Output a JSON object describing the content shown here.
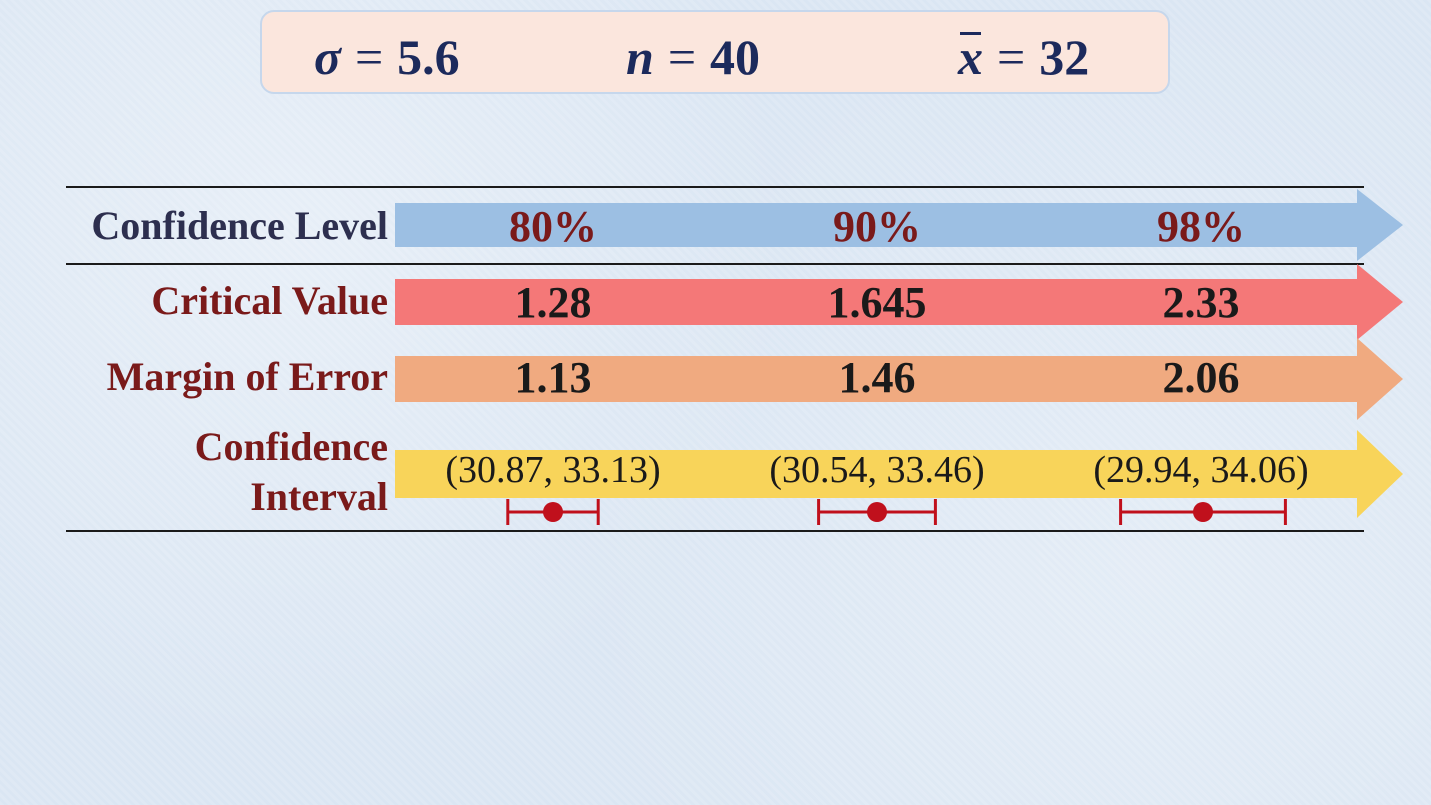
{
  "params": {
    "sigma": {
      "symbol": "σ",
      "eq": "=",
      "value": "5.6"
    },
    "n": {
      "symbol": "n",
      "eq": "=",
      "value": "40"
    },
    "xbar": {
      "symbol": "x",
      "eq": "=",
      "value": "32"
    }
  },
  "rows": {
    "confidence_level": "Confidence Level",
    "critical_value": "Critical Value",
    "margin_of_error": "Margin of Error",
    "confidence_interval_line1": "Confidence",
    "confidence_interval_line2": "Interval"
  },
  "columns": [
    {
      "level": "80%",
      "critical": "1.28",
      "moe": "1.13",
      "ci": "(30.87, 33.13)"
    },
    {
      "level": "90%",
      "critical": "1.645",
      "moe": "1.46",
      "ci": "(30.54, 33.46)"
    },
    {
      "level": "98%",
      "critical": "2.33",
      "moe": "2.06",
      "ci": "(29.94, 34.06)"
    }
  ],
  "colors": {
    "level_band": "#9cbfe3",
    "critical_band": "#f47878",
    "moe_band": "#f0aa80",
    "ci_band": "#f8d45a",
    "interval_marker": "#c0101c"
  }
}
